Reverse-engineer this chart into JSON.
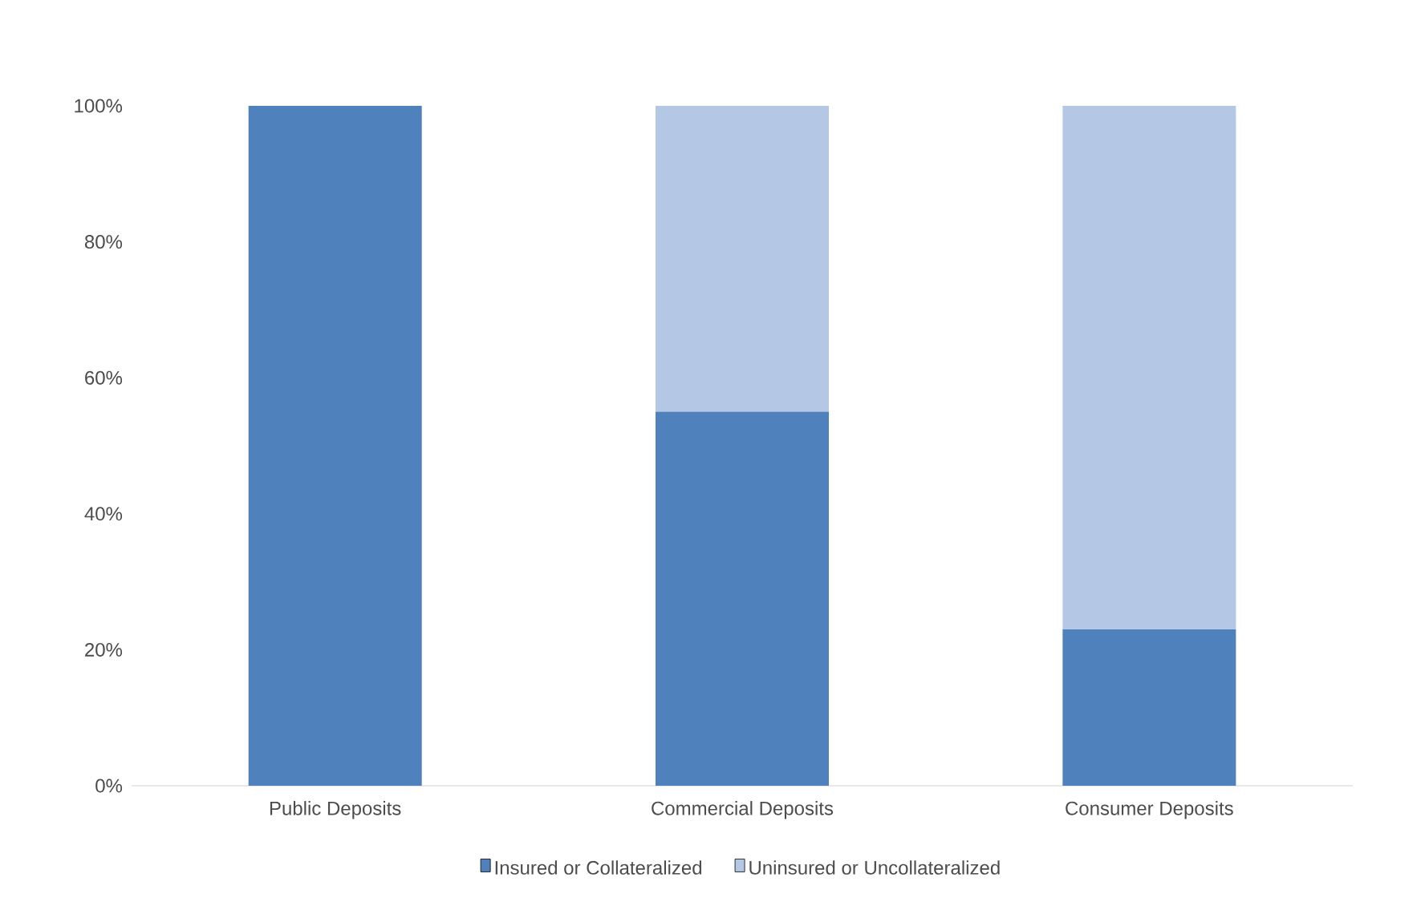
{
  "chart_data": {
    "type": "bar",
    "stacked": true,
    "categories": [
      "Public Deposits",
      "Commercial Deposits",
      "Consumer Deposits"
    ],
    "series": [
      {
        "name": "Insured or Collateralized",
        "color": "#4f81bd",
        "values": [
          100,
          55,
          23
        ]
      },
      {
        "name": "Uninsured or Uncollateralized",
        "color": "#b4c7e4",
        "values": [
          0,
          45,
          77
        ]
      }
    ],
    "ylim": [
      0,
      100
    ],
    "yticks": [
      {
        "value": 0,
        "label": "0%"
      },
      {
        "value": 20,
        "label": "20%"
      },
      {
        "value": 40,
        "label": "40%"
      },
      {
        "value": 60,
        "label": "60%"
      },
      {
        "value": 80,
        "label": "80%"
      },
      {
        "value": 100,
        "label": "100%"
      }
    ],
    "grid": false,
    "legend": "bottom"
  }
}
